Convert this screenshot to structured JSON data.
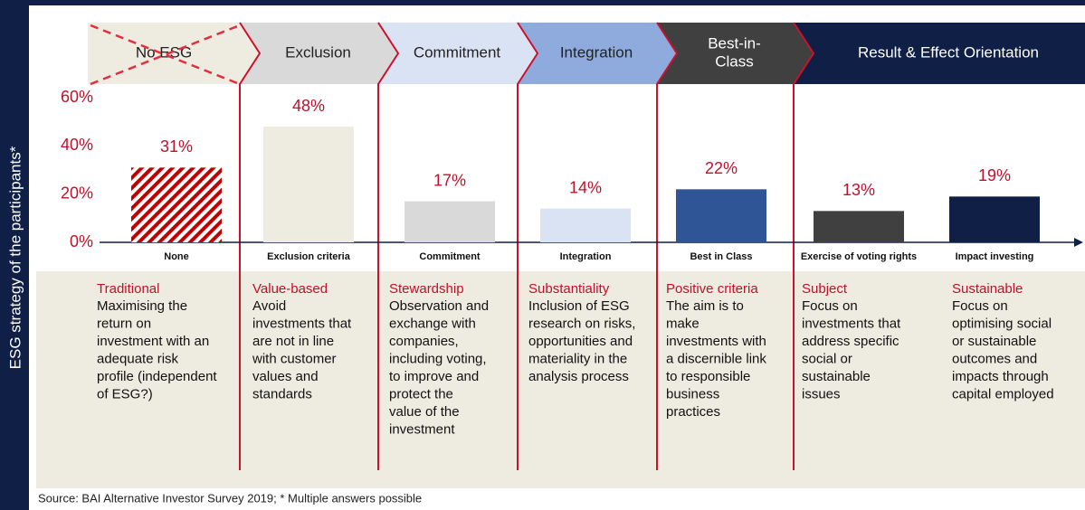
{
  "chart_data": {
    "type": "bar",
    "y_label": "ESG strategy of the participants*",
    "stages": [
      [
        "No ESG"
      ],
      [
        "Exclusion"
      ],
      [
        "Commitment"
      ],
      [
        "Integration"
      ],
      [
        "Best-in-",
        "Class"
      ],
      [
        "Result & Effect Orientation"
      ]
    ],
    "categories": [
      "None",
      "Exclusion criteria",
      "Commitment",
      "Integration",
      "Best in Class",
      "Exercise of voting rights",
      "Impact investing"
    ],
    "values": [
      31,
      48,
      17,
      14,
      22,
      13,
      19
    ],
    "value_labels": [
      "31%",
      "48%",
      "17%",
      "14%",
      "22%",
      "13%",
      "19%"
    ],
    "colors": [
      "#c00000",
      "#eeebe0",
      "#d9d9d9",
      "#dae3f3",
      "#2f5597",
      "#404040",
      "#0f1f45"
    ],
    "hatched": [
      true,
      false,
      false,
      false,
      false,
      false,
      false
    ],
    "ylim": [
      0,
      60
    ],
    "yticks": [
      {
        "value": 0,
        "label": "0%"
      },
      {
        "value": 20,
        "label": "20%"
      },
      {
        "value": 40,
        "label": "40%"
      },
      {
        "value": 60,
        "label": "60%"
      }
    ],
    "descriptions": [
      {
        "title": "Traditional",
        "lines": [
          "Maximising the",
          "return on",
          "investment with an",
          "adequate risk",
          "profile (independent",
          "of ESG?)"
        ]
      },
      {
        "title": "Value-based",
        "lines": [
          "Avoid",
          "investments that",
          "are not in line",
          "with customer",
          "values and",
          "standards"
        ]
      },
      {
        "title": "Stewardship",
        "lines": [
          "Observation and",
          "exchange with",
          "companies,",
          "including voting,",
          "to improve and",
          "protect the",
          "value of the",
          "investment"
        ]
      },
      {
        "title": "Substantiality",
        "lines": [
          "Inclusion of ESG",
          "research on risks,",
          "opportunities and",
          "materiality in the",
          "analysis process"
        ]
      },
      {
        "title": "Positive criteria",
        "lines": [
          "The aim is to",
          "make",
          "investments with",
          "a discernible link",
          "to responsible",
          "business",
          "practices"
        ]
      },
      {
        "title": "Subject",
        "lines": [
          "Focus on",
          "investments that",
          "address specific",
          "social or",
          "sustainable",
          "issues"
        ]
      },
      {
        "title": "Sustainable",
        "lines": [
          "Focus on",
          "optimising social",
          "or sustainable",
          "outcomes and",
          "impacts through",
          "capital employed"
        ]
      }
    ],
    "source": "Source: BAI Alternative Investor Survey 2019; * Multiple answers possible"
  }
}
